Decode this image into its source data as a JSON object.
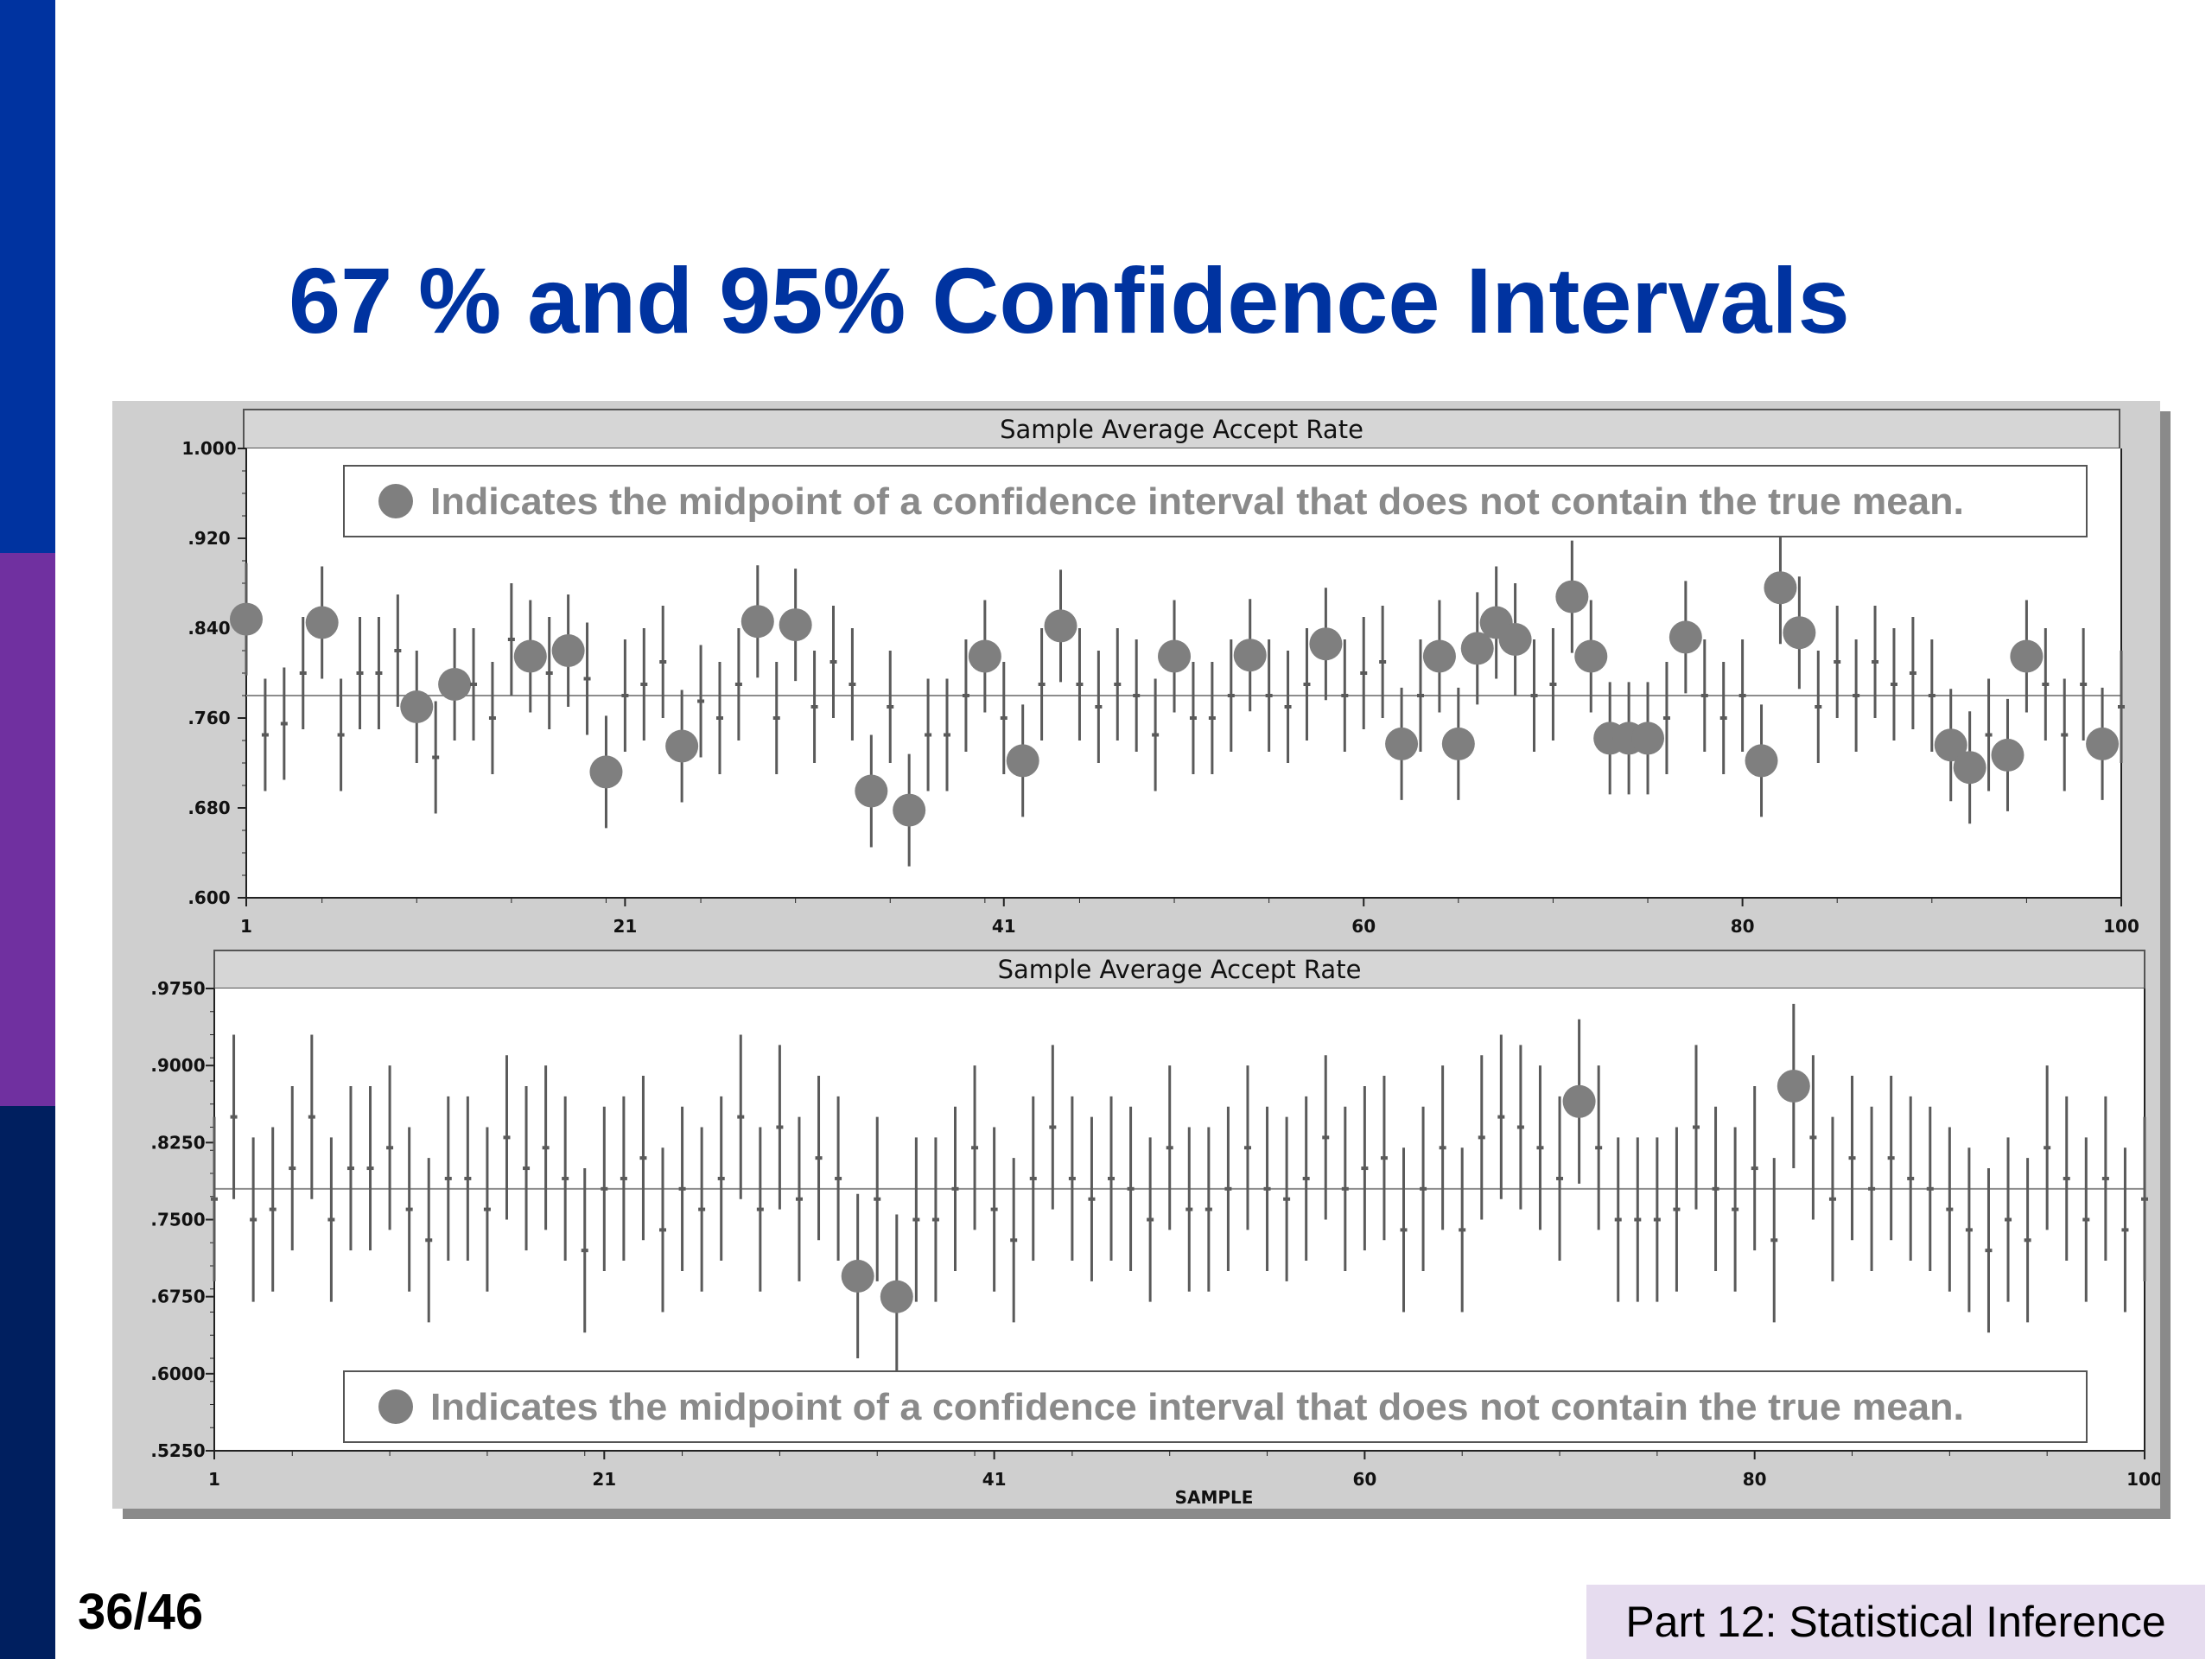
{
  "slide": {
    "title": "67 % and 95% Confidence Intervals",
    "page_number": "36/46",
    "footer": "Part 12: Statistical Inference",
    "left_bar_colors": [
      "#0033a0",
      "#7030a0",
      "#001f5f"
    ],
    "title_color": "#0033a0"
  },
  "legend_text": "Indicates the midpoint of a confidence interval that does not contain the true mean.",
  "chart_data": [
    {
      "type": "scatter",
      "title": "Sample Average Accept Rate",
      "xlabel": "",
      "xlim": [
        1,
        100
      ],
      "x_ticks": [
        "1",
        "21",
        "41",
        "60",
        "80",
        "100"
      ],
      "ylim": [
        0.6,
        1.0
      ],
      "y_ticks": [
        "1.000",
        ".920",
        ".840",
        ".760",
        ".680",
        ".600"
      ],
      "true_mean": 0.78,
      "half_width": 0.05,
      "legend_position": "top",
      "colors": {
        "interval": "#5a5a5a",
        "miss_marker": "#7f7f7f",
        "mean_line": "#8c8c8c"
      },
      "midpoints": [
        0.848,
        0.745,
        0.755,
        0.8,
        0.845,
        0.745,
        0.8,
        0.8,
        0.82,
        0.77,
        0.725,
        0.79,
        0.79,
        0.76,
        0.83,
        0.815,
        0.8,
        0.82,
        0.795,
        0.712,
        0.78,
        0.79,
        0.81,
        0.735,
        0.775,
        0.76,
        0.79,
        0.846,
        0.76,
        0.843,
        0.77,
        0.81,
        0.79,
        0.695,
        0.77,
        0.678,
        0.745,
        0.745,
        0.78,
        0.815,
        0.76,
        0.722,
        0.79,
        0.842,
        0.79,
        0.77,
        0.79,
        0.78,
        0.745,
        0.815,
        0.76,
        0.76,
        0.78,
        0.816,
        0.78,
        0.77,
        0.79,
        0.826,
        0.78,
        0.8,
        0.81,
        0.737,
        0.78,
        0.815,
        0.737,
        0.822,
        0.845,
        0.83,
        0.78,
        0.79,
        0.868,
        0.815,
        0.742,
        0.742,
        0.742,
        0.76,
        0.832,
        0.78,
        0.76,
        0.78,
        0.722,
        0.876,
        0.836,
        0.77,
        0.81,
        0.78,
        0.81,
        0.79,
        0.8,
        0.78,
        0.736,
        0.716,
        0.745,
        0.727,
        0.815,
        0.79,
        0.745,
        0.79,
        0.737,
        0.77
      ],
      "misses": [
        1,
        5,
        10,
        12,
        16,
        18,
        20,
        24,
        28,
        30,
        34,
        36,
        40,
        42,
        44,
        50,
        54,
        58,
        62,
        64,
        65,
        66,
        67,
        68,
        71,
        72,
        73,
        74,
        75,
        77,
        81,
        82,
        83,
        91,
        92,
        94,
        95,
        99
      ]
    },
    {
      "type": "scatter",
      "title": "Sample Average Accept Rate",
      "xlabel": "SAMPLE",
      "xlim": [
        1,
        100
      ],
      "x_ticks": [
        "1",
        "21",
        "41",
        "60",
        "80",
        "100"
      ],
      "ylim": [
        0.525,
        0.975
      ],
      "y_ticks": [
        ".9750",
        ".9000",
        ".8250",
        ".7500",
        ".6750",
        ".6000",
        ".5250"
      ],
      "true_mean": 0.78,
      "half_width": 0.08,
      "legend_position": "bottom",
      "colors": {
        "interval": "#5a5a5a",
        "miss_marker": "#7f7f7f",
        "mean_line": "#8c8c8c"
      },
      "midpoints": [
        0.77,
        0.85,
        0.75,
        0.76,
        0.8,
        0.85,
        0.75,
        0.8,
        0.8,
        0.82,
        0.76,
        0.73,
        0.79,
        0.79,
        0.76,
        0.83,
        0.8,
        0.82,
        0.79,
        0.72,
        0.78,
        0.79,
        0.81,
        0.74,
        0.78,
        0.76,
        0.79,
        0.85,
        0.76,
        0.84,
        0.77,
        0.81,
        0.79,
        0.695,
        0.77,
        0.675,
        0.75,
        0.75,
        0.78,
        0.82,
        0.76,
        0.73,
        0.79,
        0.84,
        0.79,
        0.77,
        0.79,
        0.78,
        0.75,
        0.82,
        0.76,
        0.76,
        0.78,
        0.82,
        0.78,
        0.77,
        0.79,
        0.83,
        0.78,
        0.8,
        0.81,
        0.74,
        0.78,
        0.82,
        0.74,
        0.83,
        0.85,
        0.84,
        0.82,
        0.79,
        0.865,
        0.82,
        0.75,
        0.75,
        0.75,
        0.76,
        0.84,
        0.78,
        0.76,
        0.8,
        0.73,
        0.88,
        0.83,
        0.77,
        0.81,
        0.78,
        0.81,
        0.79,
        0.78,
        0.76,
        0.74,
        0.72,
        0.75,
        0.73,
        0.82,
        0.79,
        0.75,
        0.79,
        0.74,
        0.77
      ],
      "misses": [
        34,
        36,
        71,
        82
      ]
    }
  ]
}
